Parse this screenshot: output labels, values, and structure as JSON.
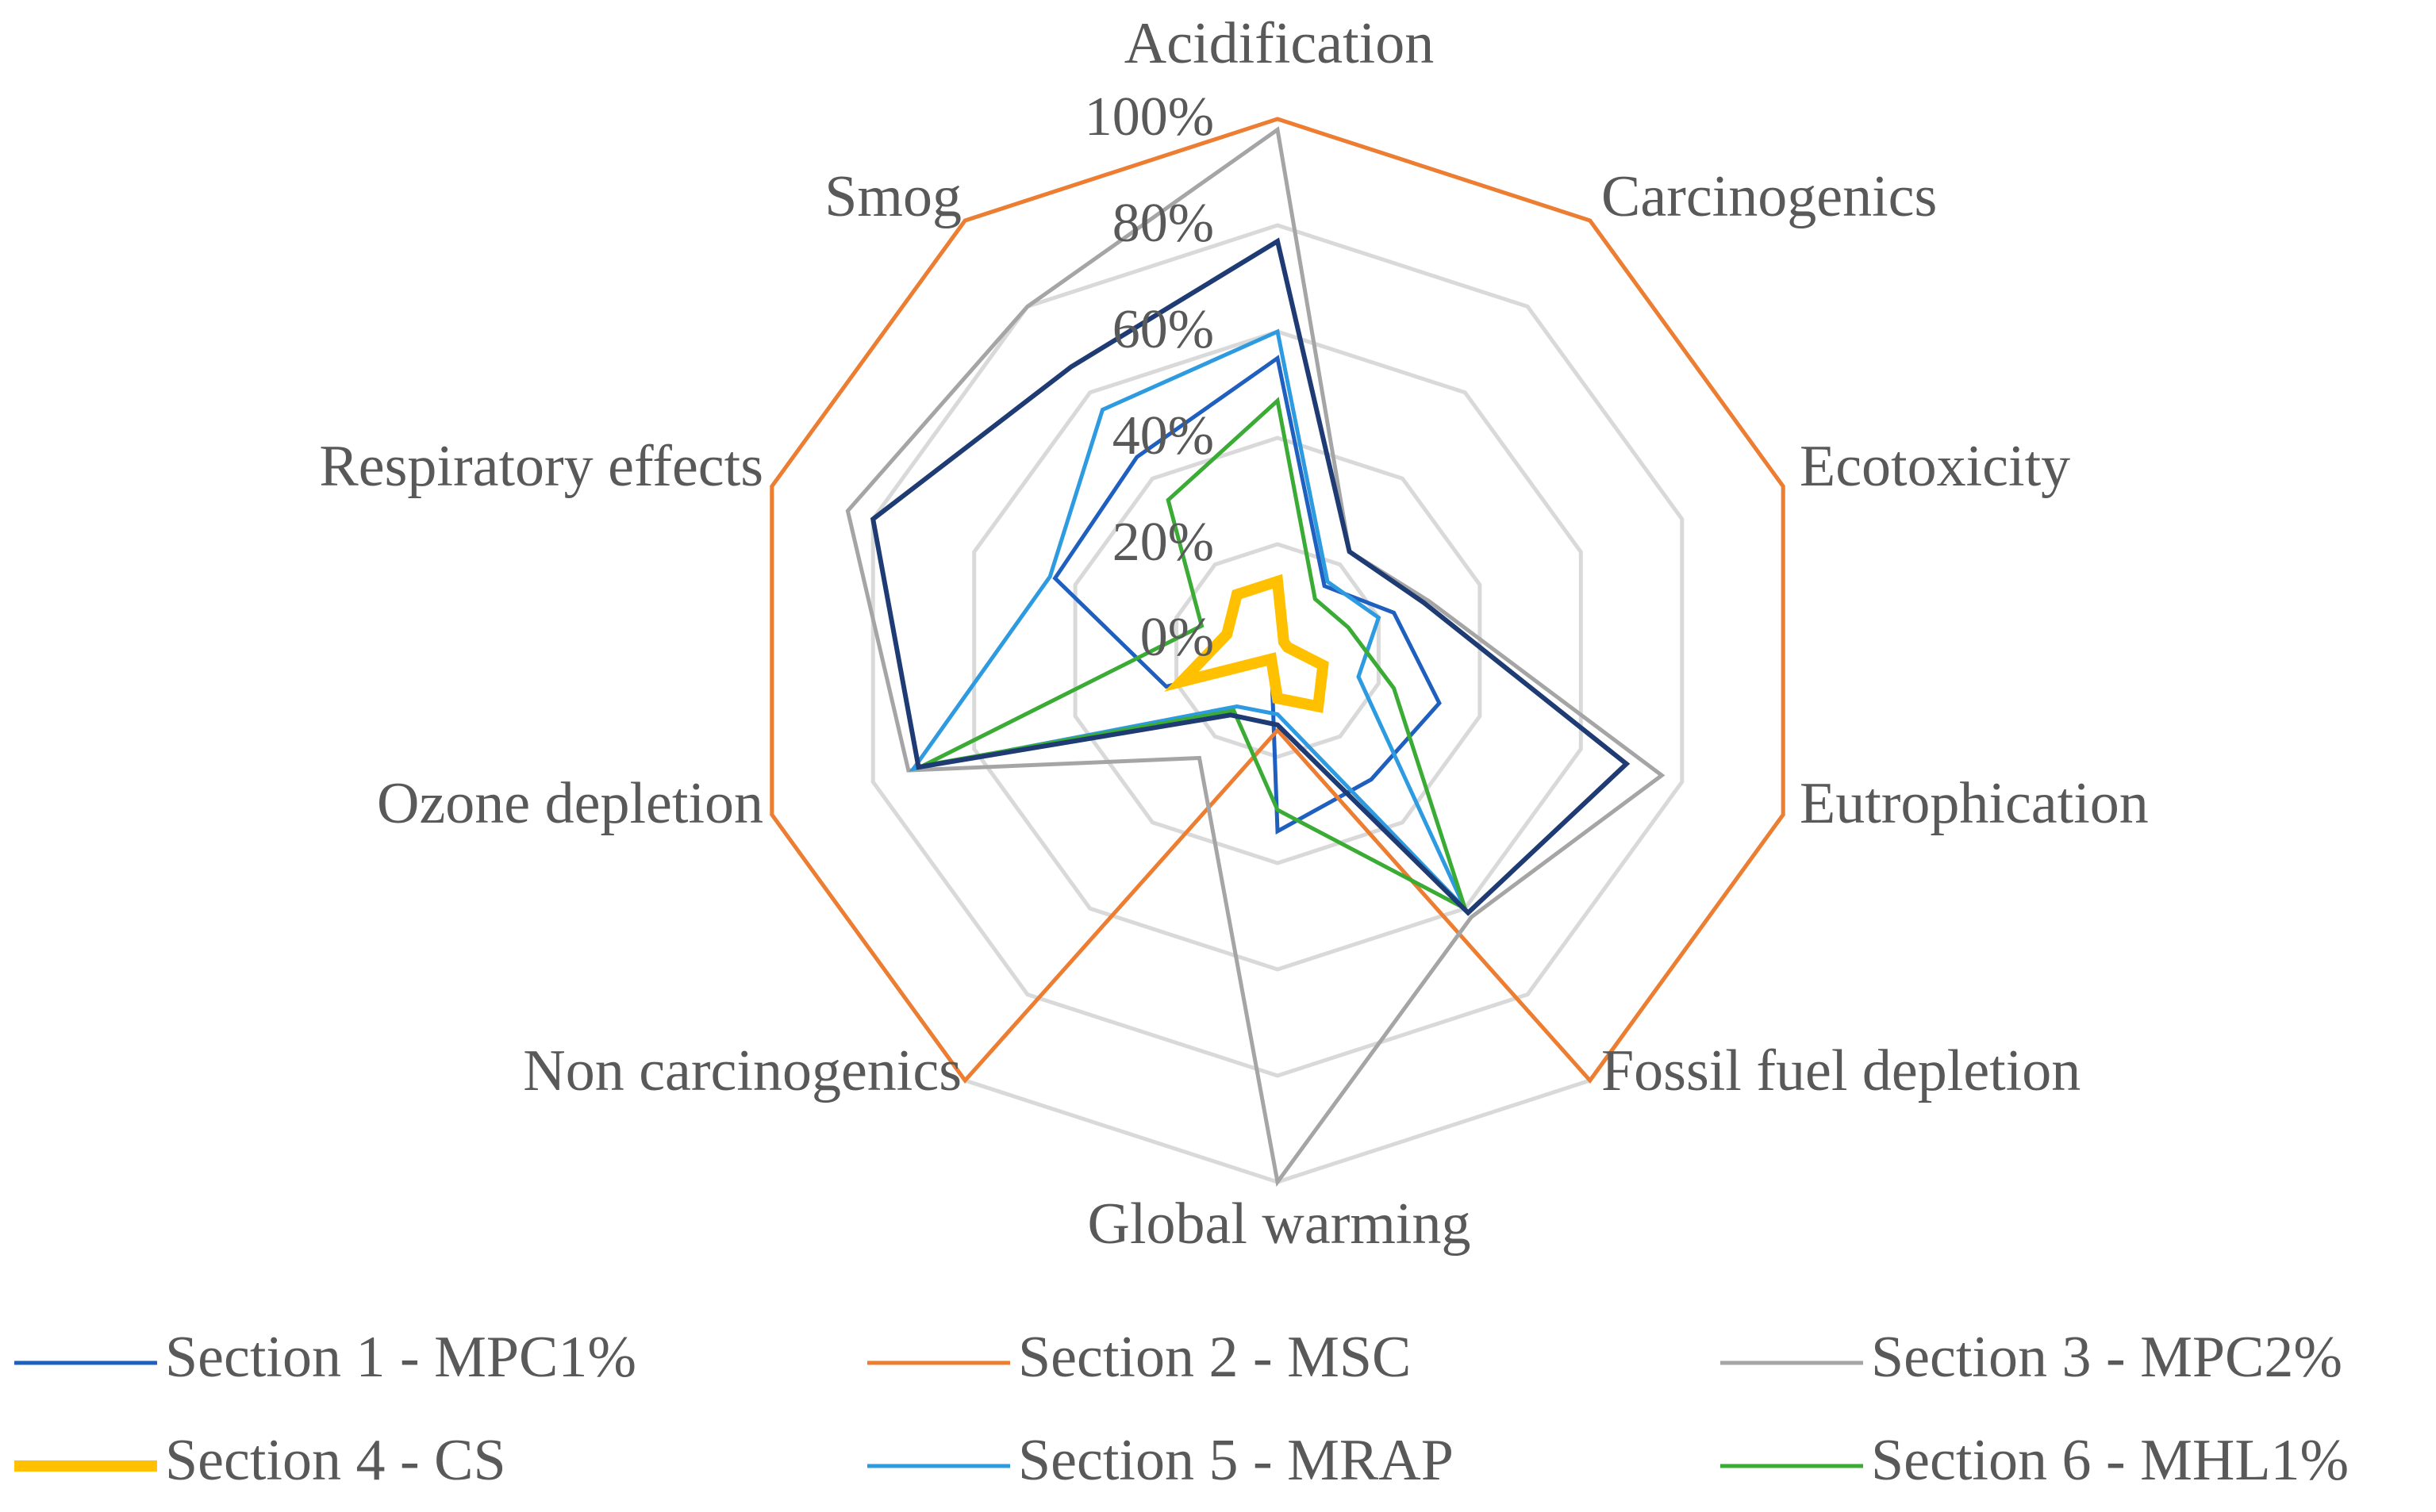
{
  "chart_data": {
    "type": "radar",
    "title": "",
    "axes": [
      "Acidification",
      "Carcinogenics",
      "Ecotoxicity",
      "Eutrophication",
      "Fossil fuel depletion",
      "Global warming",
      "Non carcinogenics",
      "Ozone depletion",
      "Respiratory effects",
      "Smog"
    ],
    "rlim": [
      0,
      100
    ],
    "ticks": [
      "0%",
      "20%",
      "40%",
      "60%",
      "80%",
      "100%"
    ],
    "tick_values": [
      0,
      20,
      40,
      60,
      80,
      100
    ],
    "outer_tick_value": 100,
    "series": [
      {
        "name": "Section 1 - MPC1%",
        "color": "#1f5fbf",
        "width": 5,
        "values": [
          55,
          15,
          23,
          32,
          30,
          34,
          2,
          22,
          44,
          45
        ]
      },
      {
        "name": "Section 2 - MSC",
        "color": "#ed7d31",
        "width": 5,
        "values": [
          100,
          100,
          100,
          100,
          100,
          15,
          100,
          100,
          100,
          100
        ]
      },
      {
        "name": "Section 3 - MPC2%",
        "color": "#a5a5a5",
        "width": 5,
        "values": [
          98,
          23,
          30,
          76,
          62,
          100,
          25,
          73,
          85,
          80
        ]
      },
      {
        "name": "Section 4 - CS",
        "color": "#ffc000",
        "width": 14,
        "values": [
          13,
          2,
          2,
          9,
          13,
          9,
          2,
          19,
          10,
          13
        ]
      },
      {
        "name": "Section 5 - MRAP",
        "color": "#2e9be0",
        "width": 5,
        "values": [
          60,
          16,
          20,
          16,
          60,
          12,
          13,
          72,
          45,
          56
        ]
      },
      {
        "name": "Section 6 - MHL1%",
        "color": "#3aab34",
        "width": 5,
        "values": [
          47,
          12,
          14,
          23,
          60,
          30,
          14,
          70,
          15,
          35
        ]
      },
      {
        "name": "Section 1 - MPC1% (outline)",
        "color": "#1f3b73",
        "width": 6,
        "values": [
          77,
          23,
          29,
          69,
          61,
          14,
          15,
          71,
          80,
          66
        ],
        "in_legend": false
      }
    ],
    "legend": {
      "placement": "bottom",
      "entries": [
        "Section 1 - MPC1%",
        "Section 2 - MSC",
        "Section 3 - MPC2%",
        "Section 4 - CS",
        "Section 5 - MRAP",
        "Section 6 - MHL1%"
      ]
    }
  }
}
